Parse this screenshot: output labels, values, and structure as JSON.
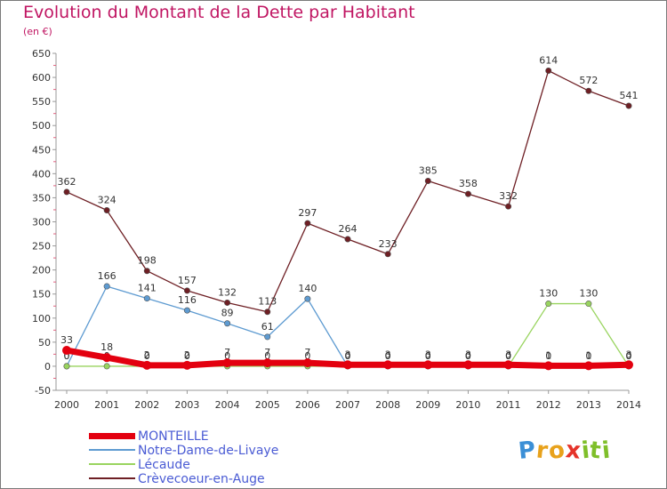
{
  "title": "Evolution du Montant de la Dette par Habitant",
  "subtitle": "(en €)",
  "logo": {
    "text": "Proxiti",
    "letters": [
      "P",
      "r",
      "o",
      "x",
      "i",
      "t",
      "i"
    ],
    "colors": [
      "#3b8fd6",
      "#e8a21c",
      "#e8a21c",
      "#e5332a",
      "#7fbf2a",
      "#7fbf2a",
      "#7fbf2a"
    ]
  },
  "chart_data": {
    "type": "line",
    "title": "Evolution du Montant de la Dette par Habitant",
    "ylabel": "(en €)",
    "xlabel": "",
    "x": [
      "2000",
      "2001",
      "2002",
      "2003",
      "2004",
      "2005",
      "2006",
      "2007",
      "2008",
      "2009",
      "2010",
      "2011",
      "2012",
      "2013",
      "2014"
    ],
    "ylim": [
      -50,
      650
    ],
    "yticks": [
      -50,
      0,
      50,
      100,
      150,
      200,
      250,
      300,
      350,
      400,
      450,
      500,
      550,
      600,
      650
    ],
    "grid": false,
    "legend": "bottom-left",
    "series": [
      {
        "name": "Crèvecoeur-en-Auge",
        "color": "#6e1f24",
        "values": [
          362,
          324,
          198,
          157,
          132,
          113,
          297,
          264,
          233,
          385,
          358,
          332,
          614,
          572,
          541
        ],
        "labels": [
          "362",
          "324",
          "198",
          "157",
          "132",
          "113",
          "297",
          "264",
          "233",
          "385",
          "358",
          "332",
          "614",
          "572",
          "541"
        ]
      },
      {
        "name": "Notre-Dame-de-Livaye",
        "color": "#5e9bd1",
        "values": [
          0,
          166,
          141,
          116,
          89,
          61,
          140,
          0,
          0,
          0,
          0,
          0,
          0,
          0,
          0
        ],
        "labels": [
          "0",
          "166",
          "141",
          "116",
          "89",
          "61",
          "140",
          "0",
          "0",
          "0",
          "0",
          "0",
          "0",
          "0",
          "0"
        ]
      },
      {
        "name": "Lécaude",
        "color": "#99d45f",
        "values": [
          0,
          0,
          0,
          0,
          0,
          0,
          0,
          0,
          0,
          0,
          0,
          0,
          130,
          130,
          0
        ],
        "labels": [
          "0",
          "0",
          "0",
          "0",
          "0",
          "0",
          "0",
          "0",
          "0",
          "0",
          "0",
          "0",
          "130",
          "130",
          "0"
        ]
      },
      {
        "name": "MONTEILLE",
        "color": "#e3000f",
        "values": [
          33,
          18,
          2,
          2,
          7,
          7,
          7,
          3,
          3,
          3,
          3,
          3,
          1,
          1,
          3
        ],
        "labels": [
          "33",
          "18",
          "2",
          "2",
          "7",
          "7",
          "7",
          "3",
          "3",
          "3",
          "3",
          "3",
          "1",
          "1",
          "3"
        ]
      }
    ],
    "legend_entries": [
      {
        "name": "MONTEILLE",
        "color": "#e3000f",
        "thickness": 7
      },
      {
        "name": "Notre-Dame-de-Livaye",
        "color": "#5e9bd1",
        "thickness": 2
      },
      {
        "name": "Lécaude",
        "color": "#99d45f",
        "thickness": 2
      },
      {
        "name": "Crèvecoeur-en-Auge",
        "color": "#6e1f24",
        "thickness": 2
      }
    ]
  }
}
